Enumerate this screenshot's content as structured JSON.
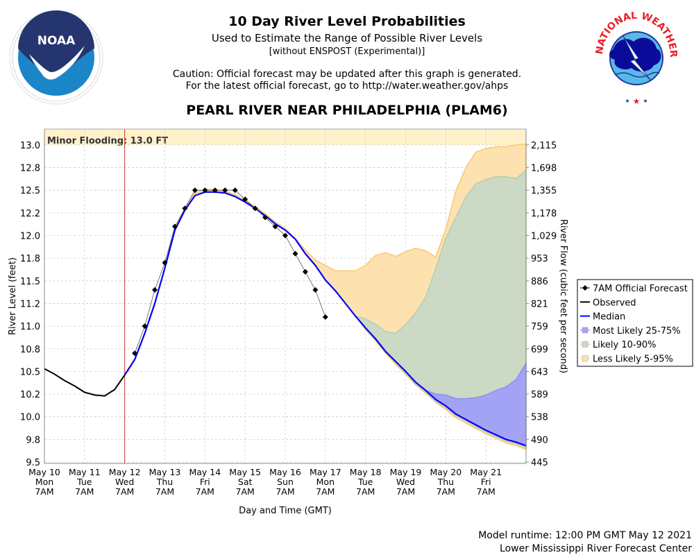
{
  "header": {
    "title": "10 Day River Level Probabilities",
    "subtitle": "Used to Estimate the Range of Possible River Levels",
    "subtitle2": "[without ENSPOST (Experimental)]",
    "caution1": "Caution: Official forecast may be updated after this graph is generated.",
    "caution2": "For the latest official forecast, go to http://water.weather.gov/ahps",
    "station": "PEARL RIVER NEAR PHILADELPHIA (PLAM6)"
  },
  "logos": {
    "noaa": {
      "text": "NOAA",
      "ring": "NATIONAL OCEANIC AND ATMOSPHERIC ADMINISTRATION · U.S. DEPARTMENT OF COMMERCE"
    },
    "nws": {
      "ring": "NATIONAL WEATHER SERVICE"
    }
  },
  "footer": {
    "runtime": "Model runtime: 12:00 PM GMT May 12 2021",
    "center": "Lower Mississippi River Forecast Center"
  },
  "colors": {
    "median": "#0000ff",
    "observed": "#000000",
    "forecast": "#000000",
    "band_25_75": "#a3a3f5",
    "band_10_90": "#cbd9c5",
    "band_5_95": "#fde2b0",
    "band_5_95_edge": "#fdc66e",
    "flood_zone": "#fff2cb",
    "now_line": "#c83232"
  },
  "chart_data": {
    "type": "area",
    "title": "10 Day River Level Probabilities",
    "xlabel": "Day and Time (GMT)",
    "ylabel": "River Level (feet)",
    "ylabel_right": "River Flow (cubic feet per second)",
    "x_units": "days since May 10 7AM GMT",
    "xlim": [
      0,
      12
    ],
    "ylim": [
      9.5,
      13.18
    ],
    "grid": true,
    "legend_position": "right",
    "flood_annotation": {
      "label": "Minor Flooding: 13.0 FT",
      "level": 13.0
    },
    "now_day": 2.0,
    "x_ticks": [
      {
        "day": 0,
        "date": "May 10",
        "dow": "Mon",
        "time": "7AM"
      },
      {
        "day": 1,
        "date": "May 11",
        "dow": "Tue",
        "time": "7AM"
      },
      {
        "day": 2,
        "date": "May 12",
        "dow": "Wed",
        "time": "7AM"
      },
      {
        "day": 3,
        "date": "May 13",
        "dow": "Thu",
        "time": "7AM"
      },
      {
        "day": 4,
        "date": "May 14",
        "dow": "Fri",
        "time": "7AM"
      },
      {
        "day": 5,
        "date": "May 15",
        "dow": "Sat",
        "time": "7AM"
      },
      {
        "day": 6,
        "date": "May 16",
        "dow": "Sun",
        "time": "7AM"
      },
      {
        "day": 7,
        "date": "May 17",
        "dow": "Mon",
        "time": "7AM"
      },
      {
        "day": 8,
        "date": "May 18",
        "dow": "Tue",
        "time": "7AM"
      },
      {
        "day": 9,
        "date": "May 19",
        "dow": "Wed",
        "time": "7AM"
      },
      {
        "day": 10,
        "date": "May 20",
        "dow": "Thu",
        "time": "7AM"
      },
      {
        "day": 11,
        "date": "May 21",
        "dow": "Fri",
        "time": "7AM"
      }
    ],
    "y_ticks": [
      {
        "level": 9.5,
        "label": "9.5",
        "flow": "445"
      },
      {
        "level": 9.75,
        "label": "9.8",
        "flow": "490"
      },
      {
        "level": 10.0,
        "label": "10.0",
        "flow": "538"
      },
      {
        "level": 10.25,
        "label": "10.2",
        "flow": "589"
      },
      {
        "level": 10.5,
        "label": "10.5",
        "flow": "643"
      },
      {
        "level": 10.75,
        "label": "10.8",
        "flow": "699"
      },
      {
        "level": 11.0,
        "label": "11.0",
        "flow": "759"
      },
      {
        "level": 11.25,
        "label": "11.2",
        "flow": "821"
      },
      {
        "level": 11.5,
        "label": "11.5",
        "flow": "886"
      },
      {
        "level": 11.75,
        "label": "11.8",
        "flow": "953"
      },
      {
        "level": 12.0,
        "label": "12.0",
        "flow": "1,029"
      },
      {
        "level": 12.25,
        "label": "12.2",
        "flow": "1,178"
      },
      {
        "level": 12.5,
        "label": "12.5",
        "flow": "1,355"
      },
      {
        "level": 12.75,
        "label": "12.8",
        "flow": "1,698"
      },
      {
        "level": 13.0,
        "label": "13.0",
        "flow": "2,115"
      }
    ],
    "legend": [
      {
        "key": "forecast",
        "label": "7AM Official Forecast"
      },
      {
        "key": "observed",
        "label": "Observed"
      },
      {
        "key": "median",
        "label": "Median"
      },
      {
        "key": "band_25_75",
        "label": "Most Likely 25-75%"
      },
      {
        "key": "band_10_90",
        "label": "Likely 10-90%"
      },
      {
        "key": "band_5_95",
        "label": "Less Likely 5-95%"
      }
    ],
    "observed": {
      "start_day": 0,
      "step_days": 0.25,
      "values": [
        10.53,
        10.47,
        10.4,
        10.34,
        10.27,
        10.24,
        10.23,
        10.3,
        10.46
      ]
    },
    "official_forecast": {
      "start_day": 2.25,
      "step_days": 0.25,
      "values": [
        10.7,
        11.0,
        11.4,
        11.7,
        12.1,
        12.3,
        12.5,
        12.5,
        12.5,
        12.5,
        12.5,
        12.4,
        12.3,
        12.2,
        12.1,
        12.0,
        11.8,
        11.6,
        11.4,
        11.1
      ]
    },
    "probabilistic": {
      "start_day": 2.0,
      "step_days": 0.25,
      "median": [
        10.46,
        10.63,
        10.92,
        11.25,
        11.64,
        12.06,
        12.28,
        12.44,
        12.48,
        12.48,
        12.47,
        12.43,
        12.37,
        12.3,
        12.22,
        12.13,
        12.06,
        11.96,
        11.8,
        11.67,
        11.51,
        11.39,
        11.25,
        11.11,
        10.98,
        10.86,
        10.72,
        10.61,
        10.5,
        10.38,
        10.29,
        10.19,
        10.12,
        10.03,
        9.97,
        9.91,
        9.85,
        9.8,
        9.75,
        9.72,
        9.68
      ],
      "p75": [
        10.46,
        10.63,
        10.92,
        11.25,
        11.64,
        12.06,
        12.28,
        12.44,
        12.48,
        12.48,
        12.47,
        12.43,
        12.37,
        12.3,
        12.22,
        12.13,
        12.06,
        11.96,
        11.8,
        11.67,
        11.51,
        11.39,
        11.25,
        11.11,
        10.98,
        10.86,
        10.72,
        10.61,
        10.5,
        10.38,
        10.29,
        10.25,
        10.24,
        10.2,
        10.2,
        10.21,
        10.24,
        10.29,
        10.33,
        10.41,
        10.59
      ],
      "p25": [
        10.46,
        10.63,
        10.92,
        11.25,
        11.64,
        12.06,
        12.28,
        12.44,
        12.48,
        12.48,
        12.47,
        12.43,
        12.37,
        12.3,
        12.22,
        12.13,
        12.06,
        11.96,
        11.8,
        11.67,
        11.51,
        11.39,
        11.25,
        11.11,
        10.98,
        10.86,
        10.72,
        10.61,
        10.5,
        10.38,
        10.29,
        10.19,
        10.12,
        10.03,
        9.97,
        9.91,
        9.85,
        9.8,
        9.75,
        9.72,
        9.68
      ],
      "p90": [
        10.46,
        10.63,
        10.92,
        11.25,
        11.64,
        12.06,
        12.28,
        12.44,
        12.48,
        12.48,
        12.47,
        12.43,
        12.37,
        12.3,
        12.22,
        12.13,
        12.06,
        11.96,
        11.8,
        11.67,
        11.51,
        11.39,
        11.25,
        11.11,
        11.08,
        11.02,
        10.94,
        10.92,
        11.02,
        11.15,
        11.32,
        11.64,
        11.97,
        12.2,
        12.43,
        12.57,
        12.62,
        12.65,
        12.65,
        12.63,
        12.72
      ],
      "p10": [
        10.46,
        10.63,
        10.92,
        11.25,
        11.64,
        12.06,
        12.28,
        12.44,
        12.48,
        12.48,
        12.47,
        12.43,
        12.37,
        12.3,
        12.22,
        12.13,
        12.06,
        11.96,
        11.8,
        11.67,
        11.51,
        11.39,
        11.25,
        11.11,
        10.97,
        10.85,
        10.71,
        10.6,
        10.48,
        10.36,
        10.27,
        10.17,
        10.1,
        10.01,
        9.95,
        9.89,
        9.83,
        9.78,
        9.73,
        9.7,
        9.66
      ],
      "p95": [
        10.47,
        10.64,
        10.93,
        11.26,
        11.65,
        12.07,
        12.3,
        12.47,
        12.51,
        12.51,
        12.49,
        12.45,
        12.39,
        12.32,
        12.24,
        12.15,
        12.08,
        11.97,
        11.84,
        11.73,
        11.67,
        11.61,
        11.61,
        11.61,
        11.67,
        11.78,
        11.81,
        11.77,
        11.82,
        11.86,
        11.83,
        11.76,
        12.07,
        12.49,
        12.75,
        12.92,
        12.96,
        12.98,
        12.98,
        13.0,
        13.01
      ],
      "p5": [
        10.46,
        10.63,
        10.92,
        11.25,
        11.64,
        12.06,
        12.28,
        12.44,
        12.48,
        12.48,
        12.47,
        12.43,
        12.37,
        12.3,
        12.22,
        12.13,
        12.06,
        11.96,
        11.8,
        11.67,
        11.51,
        11.39,
        11.25,
        11.11,
        10.96,
        10.84,
        10.7,
        10.58,
        10.47,
        10.35,
        10.26,
        10.16,
        10.08,
        9.99,
        9.93,
        9.87,
        9.81,
        9.76,
        9.71,
        9.68,
        9.64
      ]
    }
  }
}
